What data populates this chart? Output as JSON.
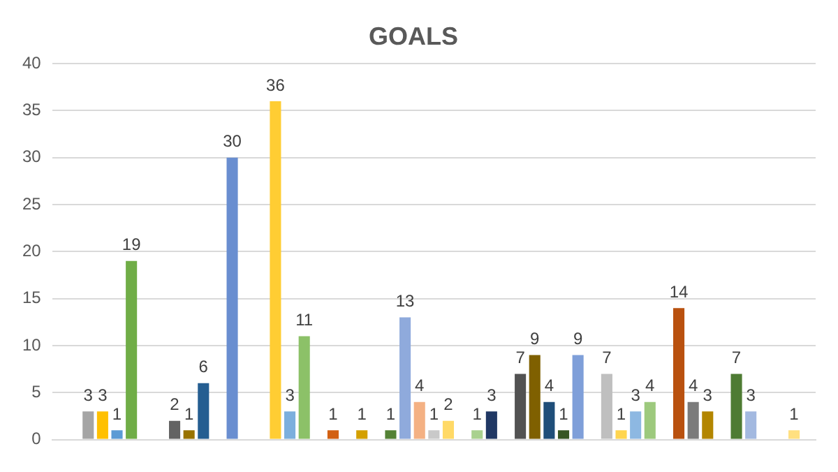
{
  "chart_data": {
    "type": "bar",
    "title": "GOALS",
    "categories": [
      null,
      null,
      null,
      null,
      null,
      null,
      null,
      null,
      null,
      null,
      null,
      null,
      null,
      null,
      null,
      null,
      null,
      null,
      null,
      null,
      null,
      null,
      null,
      null,
      null,
      null,
      null,
      null,
      null,
      null,
      null,
      null,
      null,
      null,
      null,
      null,
      null,
      null,
      null,
      null,
      null,
      null,
      null,
      null,
      null,
      null,
      null,
      null,
      null,
      null,
      null,
      null,
      null
    ],
    "values": [
      null,
      null,
      3,
      3,
      1,
      19,
      null,
      null,
      2,
      1,
      6,
      null,
      30,
      null,
      null,
      36,
      3,
      11,
      null,
      1,
      null,
      1,
      null,
      1,
      13,
      4,
      1,
      2,
      null,
      1,
      3,
      null,
      7,
      9,
      4,
      1,
      9,
      null,
      7,
      1,
      3,
      4,
      null,
      14,
      4,
      3,
      null,
      7,
      3,
      null,
      null,
      1,
      null
    ],
    "colors": [
      "#a5a5a5",
      "#a5a5a5",
      "#a5a5a5",
      "#ffc000",
      "#5b9bd5",
      "#70ad47",
      "#a5a5a5",
      "#a5a5a5",
      "#636363",
      "#997300",
      "#255e91",
      "#a5a5a5",
      "#698ed0",
      "#a5a5a5",
      "#a5a5a5",
      "#ffcd33",
      "#7cafdd",
      "#8cc168",
      "#a5a5a5",
      "#d26012",
      "#a5a5a5",
      "#d4a000",
      "#a5a5a5",
      "#548235",
      "#8faadc",
      "#f4b183",
      "#c9c9c9",
      "#ffd966",
      "#a5a5a5",
      "#a9d18e",
      "#203864",
      "#a5a5a5",
      "#525252",
      "#7f6000",
      "#1f4e79",
      "#375623",
      "#7f9fd9",
      "#a5a5a5",
      "#bfbfbf",
      "#ffd54f",
      "#8db8e2",
      "#9dc97d",
      "#a5a5a5",
      "#b9510f",
      "#7b7b7b",
      "#b38600",
      "#a5a5a5",
      "#4e7b33",
      "#a3b9e0",
      "#a5a5a5",
      "#a5a5a5",
      "#ffe080",
      "#a5a5a5"
    ],
    "ylim": [
      0,
      40
    ],
    "yticks": [
      0,
      5,
      10,
      15,
      20,
      25,
      30,
      35,
      40
    ],
    "grid": "y",
    "data_labels": true
  }
}
